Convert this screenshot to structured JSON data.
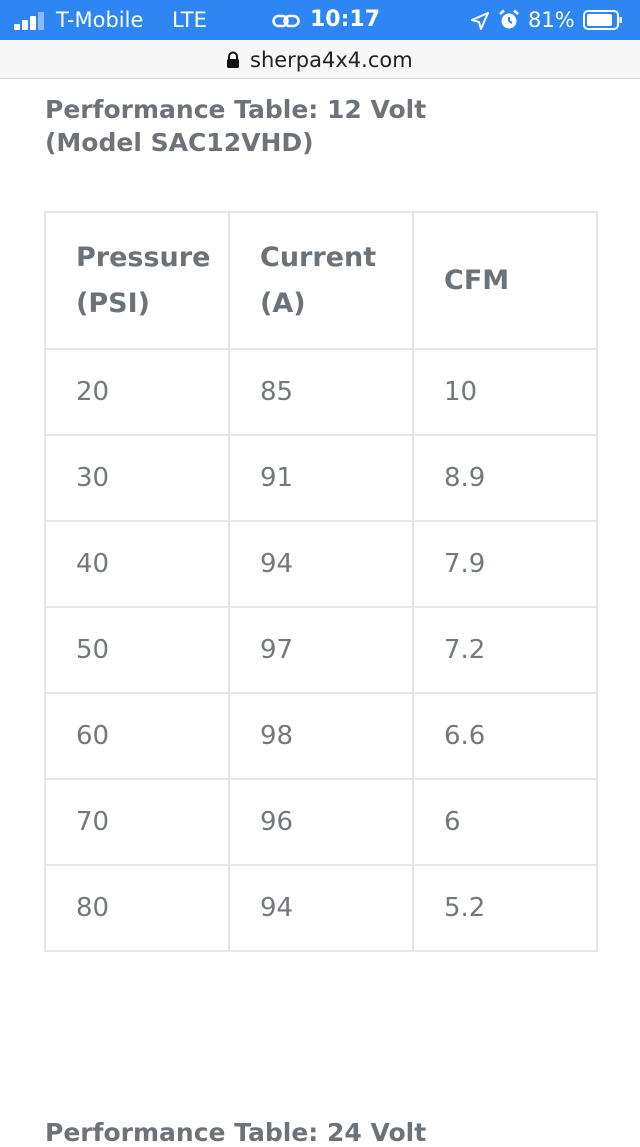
{
  "status_bar": {
    "carrier": "T-Mobile",
    "network": "LTE",
    "time": "10:17",
    "battery_percent": "81%",
    "signal_icon": "cellular-signal-icon",
    "accent_color": "#2d86f4"
  },
  "browser": {
    "url": "sherpa4x4.com"
  },
  "content": {
    "table_title_line1": "Performance Table: 12 Volt",
    "table_title_line2": "(Model SAC12VHD)",
    "headers": [
      {
        "line1": "Pressure",
        "line2": "(PSI)"
      },
      {
        "line1": "Current",
        "line2": "(A)"
      },
      {
        "line1": "CFM",
        "line2": ""
      }
    ],
    "rows": [
      [
        "20",
        "85",
        "10"
      ],
      [
        "30",
        "91",
        "8.9"
      ],
      [
        "40",
        "94",
        "7.9"
      ],
      [
        "50",
        "97",
        "7.2"
      ],
      [
        "60",
        "98",
        "6.6"
      ],
      [
        "70",
        "96",
        "6"
      ],
      [
        "80",
        "94",
        "5.2"
      ]
    ],
    "next_title": "Performance Table: 24 Volt"
  }
}
